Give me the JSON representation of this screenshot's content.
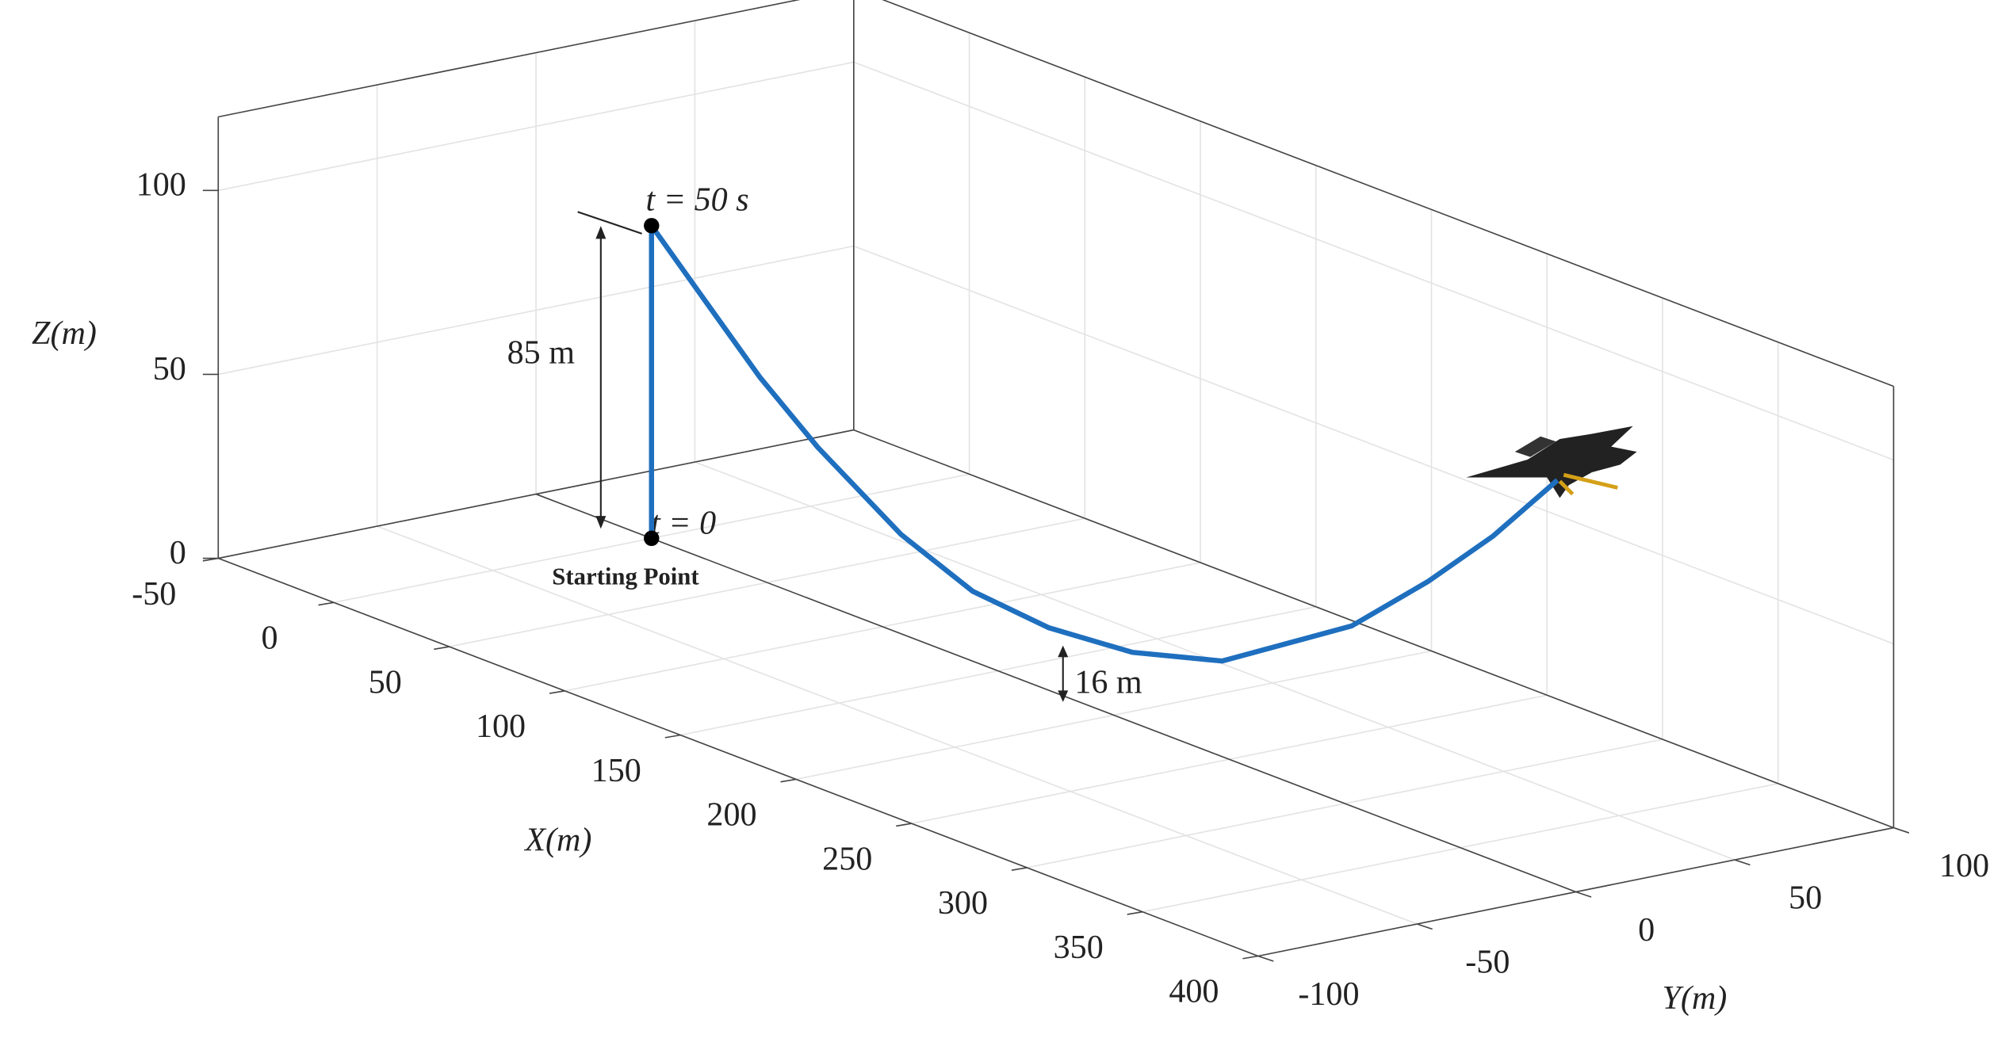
{
  "chart_data": {
    "type": "line3d",
    "x_label": "X(m)",
    "y_label": "Y(m)",
    "z_label": "Z(m)",
    "xlim": [
      -50,
      400
    ],
    "ylim": [
      -100,
      100
    ],
    "zlim": [
      0,
      120
    ],
    "xticks": [
      -50,
      0,
      50,
      100,
      150,
      200,
      250,
      300,
      350,
      400
    ],
    "yticks": [
      -100,
      -50,
      0,
      50,
      100
    ],
    "zticks": [
      0,
      50,
      100
    ],
    "grid": true,
    "series": [
      {
        "color": "#1f6fbf",
        "x": [
          0,
          0,
          25,
          47,
          72,
          108,
          139,
          172,
          208,
          247,
          303,
          336,
          364,
          392
        ],
        "y": [
          0,
          0,
          0,
          0,
          0,
          0,
          0,
          0,
          0,
          0,
          0,
          0,
          0,
          0
        ],
        "z": [
          0,
          85,
          69,
          55,
          42,
          27,
          19,
          17,
          19,
          26,
          49,
          69,
          88,
          110
        ]
      }
    ],
    "annotations": [
      "t = 50 s",
      "t = 0",
      "Starting Point",
      "85 m",
      "16 m"
    ]
  }
}
